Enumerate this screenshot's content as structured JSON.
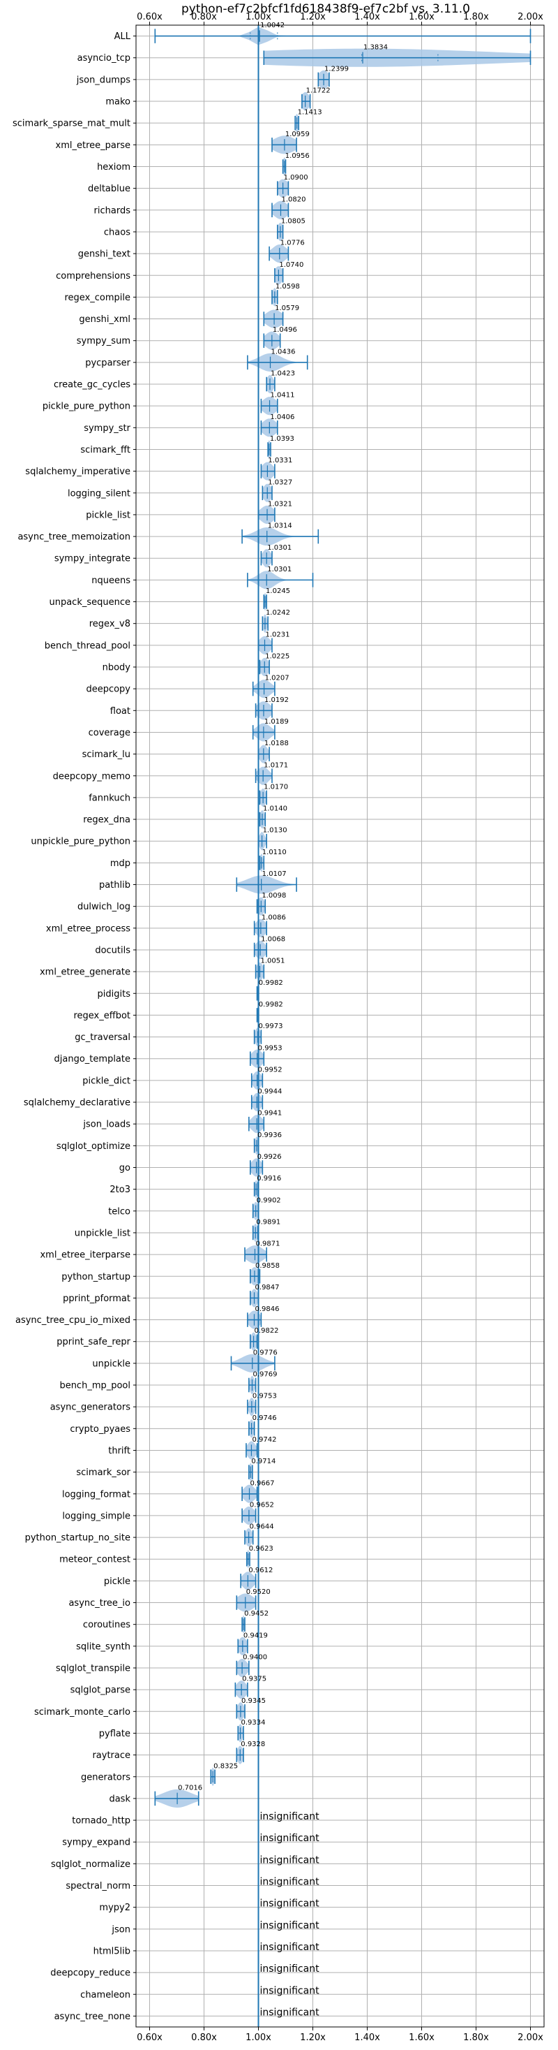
{
  "chart_data": {
    "type": "violin",
    "title": "python-ef7c2bfcf1fd618438f9-ef7c2bf vs. 3.11.0",
    "xlabel": "",
    "ylabel": "",
    "xlim": [
      0.55,
      2.05
    ],
    "x_ticks": [
      0.6,
      0.8,
      1.0,
      1.2,
      1.4,
      1.6,
      1.8,
      2.0
    ],
    "x_tick_labels": [
      "0.60x",
      "0.80x",
      "1.00x",
      "1.20x",
      "1.40x",
      "1.60x",
      "1.80x",
      "2.00x"
    ],
    "x_ticks_top_and_bottom": true,
    "reference_line": 1.0,
    "grid": true,
    "colors": {
      "violin": "#a9c8e6",
      "whisker": "#1f77b4",
      "reference_line": "#1f77b4",
      "grid": "#b0b0b0"
    },
    "insignificant_text": "insignificant",
    "benchmarks": [
      {
        "name": "ALL",
        "label": "1.0042",
        "median": 1.0042,
        "min": 0.62,
        "max": 2.0,
        "spread": 0.03,
        "q1": 0.97,
        "q3": 1.07
      },
      {
        "name": "asyncio_tcp",
        "label": "1.3834",
        "median": 1.3834,
        "min": 1.02,
        "max": 2.0,
        "spread": 0.5,
        "q1": 1.38,
        "q3": 1.66
      },
      {
        "name": "json_dumps",
        "label": "1.2399",
        "median": 1.2399,
        "min": 1.22,
        "max": 1.26,
        "spread": 0.02
      },
      {
        "name": "mako",
        "label": "1.1722",
        "median": 1.1722,
        "min": 1.16,
        "max": 1.19,
        "spread": 0.015
      },
      {
        "name": "scimark_sparse_mat_mult",
        "label": "1.1413",
        "median": 1.1413,
        "min": 1.135,
        "max": 1.148,
        "spread": 0.006
      },
      {
        "name": "xml_etree_parse",
        "label": "1.0959",
        "median": 1.0959,
        "min": 1.05,
        "max": 1.14,
        "spread": 0.04
      },
      {
        "name": "hexiom",
        "label": "1.0956",
        "median": 1.0956,
        "min": 1.09,
        "max": 1.1,
        "spread": 0.006
      },
      {
        "name": "deltablue",
        "label": "1.0900",
        "median": 1.09,
        "min": 1.07,
        "max": 1.11,
        "spread": 0.02
      },
      {
        "name": "richards",
        "label": "1.0820",
        "median": 1.082,
        "min": 1.05,
        "max": 1.11,
        "spread": 0.025
      },
      {
        "name": "chaos",
        "label": "1.0805",
        "median": 1.0805,
        "min": 1.07,
        "max": 1.09,
        "spread": 0.01
      },
      {
        "name": "genshi_text",
        "label": "1.0776",
        "median": 1.0776,
        "min": 1.04,
        "max": 1.11,
        "spread": 0.025
      },
      {
        "name": "comprehensions",
        "label": "1.0740",
        "median": 1.074,
        "min": 1.06,
        "max": 1.09,
        "spread": 0.015
      },
      {
        "name": "regex_compile",
        "label": "1.0598",
        "median": 1.0598,
        "min": 1.05,
        "max": 1.07,
        "spread": 0.008
      },
      {
        "name": "genshi_xml",
        "label": "1.0579",
        "median": 1.0579,
        "min": 1.02,
        "max": 1.09,
        "spread": 0.03
      },
      {
        "name": "sympy_sum",
        "label": "1.0496",
        "median": 1.0496,
        "min": 1.02,
        "max": 1.08,
        "spread": 0.025
      },
      {
        "name": "pycparser",
        "label": "1.0436",
        "median": 1.0436,
        "min": 0.96,
        "max": 1.18,
        "spread": 0.04
      },
      {
        "name": "create_gc_cycles",
        "label": "1.0423",
        "median": 1.0423,
        "min": 1.03,
        "max": 1.06,
        "spread": 0.012
      },
      {
        "name": "pickle_pure_python",
        "label": "1.0411",
        "median": 1.0411,
        "min": 1.01,
        "max": 1.07,
        "spread": 0.025
      },
      {
        "name": "sympy_str",
        "label": "1.0406",
        "median": 1.0406,
        "min": 1.01,
        "max": 1.07,
        "spread": 0.025
      },
      {
        "name": "scimark_fft",
        "label": "1.0393",
        "median": 1.0393,
        "min": 1.035,
        "max": 1.045,
        "spread": 0.005
      },
      {
        "name": "sqlalchemy_imperative",
        "label": "1.0331",
        "median": 1.0331,
        "min": 1.01,
        "max": 1.06,
        "spread": 0.02
      },
      {
        "name": "logging_silent",
        "label": "1.0327",
        "median": 1.0327,
        "min": 1.015,
        "max": 1.05,
        "spread": 0.015
      },
      {
        "name": "pickle_list",
        "label": "1.0321",
        "median": 1.0321,
        "min": 1.0,
        "max": 1.06,
        "spread": 0.025
      },
      {
        "name": "async_tree_memoization",
        "label": "1.0314",
        "median": 1.0314,
        "min": 0.94,
        "max": 1.22,
        "spread": 0.04
      },
      {
        "name": "sympy_integrate",
        "label": "1.0301",
        "median": 1.0301,
        "min": 1.01,
        "max": 1.05,
        "spread": 0.015
      },
      {
        "name": "nqueens",
        "label": "1.0301",
        "median": 1.0301,
        "min": 0.96,
        "max": 1.2,
        "spread": 0.03
      },
      {
        "name": "unpack_sequence",
        "label": "1.0245",
        "median": 1.0245,
        "min": 1.02,
        "max": 1.03,
        "spread": 0.003
      },
      {
        "name": "regex_v8",
        "label": "1.0242",
        "median": 1.0242,
        "min": 1.015,
        "max": 1.035,
        "spread": 0.007
      },
      {
        "name": "bench_thread_pool",
        "label": "1.0231",
        "median": 1.0231,
        "min": 1.0,
        "max": 1.05,
        "spread": 0.02
      },
      {
        "name": "nbody",
        "label": "1.0225",
        "median": 1.0225,
        "min": 1.005,
        "max": 1.04,
        "spread": 0.015
      },
      {
        "name": "deepcopy",
        "label": "1.0207",
        "median": 1.0207,
        "min": 0.98,
        "max": 1.06,
        "spread": 0.025
      },
      {
        "name": "float",
        "label": "1.0192",
        "median": 1.0192,
        "min": 0.99,
        "max": 1.05,
        "spread": 0.025
      },
      {
        "name": "coverage",
        "label": "1.0189",
        "median": 1.0189,
        "min": 0.98,
        "max": 1.06,
        "spread": 0.025
      },
      {
        "name": "scimark_lu",
        "label": "1.0188",
        "median": 1.0188,
        "min": 1.0,
        "max": 1.04,
        "spread": 0.015
      },
      {
        "name": "deepcopy_memo",
        "label": "1.0171",
        "median": 1.0171,
        "min": 0.99,
        "max": 1.05,
        "spread": 0.02
      },
      {
        "name": "fannkuch",
        "label": "1.0170",
        "median": 1.017,
        "min": 1.005,
        "max": 1.03,
        "spread": 0.01
      },
      {
        "name": "regex_dna",
        "label": "1.0140",
        "median": 1.014,
        "min": 1.005,
        "max": 1.025,
        "spread": 0.008
      },
      {
        "name": "unpickle_pure_python",
        "label": "1.0130",
        "median": 1.013,
        "min": 1.0,
        "max": 1.03,
        "spread": 0.01
      },
      {
        "name": "mdp",
        "label": "1.0110",
        "median": 1.011,
        "min": 1.005,
        "max": 1.02,
        "spread": 0.005
      },
      {
        "name": "pathlib",
        "label": "1.0107",
        "median": 1.0107,
        "min": 0.92,
        "max": 1.14,
        "spread": 0.05
      },
      {
        "name": "dulwich_log",
        "label": "1.0098",
        "median": 1.0098,
        "min": 0.995,
        "max": 1.025,
        "spread": 0.012
      },
      {
        "name": "xml_etree_process",
        "label": "1.0086",
        "median": 1.0086,
        "min": 0.985,
        "max": 1.03,
        "spread": 0.018
      },
      {
        "name": "docutils",
        "label": "1.0068",
        "median": 1.0068,
        "min": 0.985,
        "max": 1.03,
        "spread": 0.018
      },
      {
        "name": "xml_etree_generate",
        "label": "1.0051",
        "median": 1.0051,
        "min": 0.99,
        "max": 1.02,
        "spread": 0.012
      },
      {
        "name": "pidigits",
        "label": "0.9982",
        "median": 0.9982,
        "min": 0.995,
        "max": 1.001,
        "spread": 0.003
      },
      {
        "name": "regex_effbot",
        "label": "0.9982",
        "median": 0.9982,
        "min": 0.995,
        "max": 1.001,
        "spread": 0.003
      },
      {
        "name": "gc_traversal",
        "label": "0.9973",
        "median": 0.9973,
        "min": 0.985,
        "max": 1.01,
        "spread": 0.01
      },
      {
        "name": "django_template",
        "label": "0.9953",
        "median": 0.9953,
        "min": 0.97,
        "max": 1.02,
        "spread": 0.02
      },
      {
        "name": "pickle_dict",
        "label": "0.9952",
        "median": 0.9952,
        "min": 0.975,
        "max": 1.015,
        "spread": 0.015
      },
      {
        "name": "sqlalchemy_declarative",
        "label": "0.9944",
        "median": 0.9944,
        "min": 0.975,
        "max": 1.015,
        "spread": 0.015
      },
      {
        "name": "json_loads",
        "label": "0.9941",
        "median": 0.9941,
        "min": 0.965,
        "max": 1.02,
        "spread": 0.02
      },
      {
        "name": "sqlglot_optimize",
        "label": "0.9936",
        "median": 0.9936,
        "min": 0.985,
        "max": 1.0,
        "spread": 0.006
      },
      {
        "name": "go",
        "label": "0.9926",
        "median": 0.9926,
        "min": 0.97,
        "max": 1.015,
        "spread": 0.018
      },
      {
        "name": "2to3",
        "label": "0.9916",
        "median": 0.9916,
        "min": 0.985,
        "max": 0.998,
        "spread": 0.005
      },
      {
        "name": "telco",
        "label": "0.9902",
        "median": 0.9902,
        "min": 0.98,
        "max": 1.0,
        "spread": 0.008
      },
      {
        "name": "unpickle_list",
        "label": "0.9891",
        "median": 0.9891,
        "min": 0.98,
        "max": 0.998,
        "spread": 0.007
      },
      {
        "name": "xml_etree_iterparse",
        "label": "0.9871",
        "median": 0.9871,
        "min": 0.95,
        "max": 1.03,
        "spread": 0.03
      },
      {
        "name": "python_startup",
        "label": "0.9858",
        "median": 0.9858,
        "min": 0.97,
        "max": 1.005,
        "spread": 0.015
      },
      {
        "name": "pprint_pformat",
        "label": "0.9847",
        "median": 0.9847,
        "min": 0.97,
        "max": 1.0,
        "spread": 0.012
      },
      {
        "name": "async_tree_cpu_io_mixed",
        "label": "0.9846",
        "median": 0.9846,
        "min": 0.96,
        "max": 1.01,
        "spread": 0.02
      },
      {
        "name": "pprint_safe_repr",
        "label": "0.9822",
        "median": 0.9822,
        "min": 0.97,
        "max": 0.995,
        "spread": 0.01
      },
      {
        "name": "unpickle",
        "label": "0.9776",
        "median": 0.9776,
        "min": 0.9,
        "max": 1.06,
        "spread": 0.04
      },
      {
        "name": "bench_mp_pool",
        "label": "0.9769",
        "median": 0.9769,
        "min": 0.965,
        "max": 0.99,
        "spread": 0.008
      },
      {
        "name": "async_generators",
        "label": "0.9753",
        "median": 0.9753,
        "min": 0.96,
        "max": 0.99,
        "spread": 0.01
      },
      {
        "name": "crypto_pyaes",
        "label": "0.9746",
        "median": 0.9746,
        "min": 0.965,
        "max": 0.985,
        "spread": 0.008
      },
      {
        "name": "thrift",
        "label": "0.9742",
        "median": 0.9742,
        "min": 0.955,
        "max": 0.995,
        "spread": 0.015
      },
      {
        "name": "scimark_sor",
        "label": "0.9714",
        "median": 0.9714,
        "min": 0.965,
        "max": 0.978,
        "spread": 0.005
      },
      {
        "name": "logging_format",
        "label": "0.9667",
        "median": 0.9667,
        "min": 0.94,
        "max": 0.995,
        "spread": 0.02
      },
      {
        "name": "logging_simple",
        "label": "0.9652",
        "median": 0.9652,
        "min": 0.94,
        "max": 0.99,
        "spread": 0.02
      },
      {
        "name": "python_startup_no_site",
        "label": "0.9644",
        "median": 0.9644,
        "min": 0.95,
        "max": 0.98,
        "spread": 0.012
      },
      {
        "name": "meteor_contest",
        "label": "0.9623",
        "median": 0.9623,
        "min": 0.957,
        "max": 0.968,
        "spread": 0.004
      },
      {
        "name": "pickle",
        "label": "0.9612",
        "median": 0.9612,
        "min": 0.935,
        "max": 0.99,
        "spread": 0.02
      },
      {
        "name": "async_tree_io",
        "label": "0.9520",
        "median": 0.952,
        "min": 0.92,
        "max": 0.99,
        "spread": 0.03
      },
      {
        "name": "coroutines",
        "label": "0.9452",
        "median": 0.9452,
        "min": 0.94,
        "max": 0.95,
        "spread": 0.004
      },
      {
        "name": "sqlite_synth",
        "label": "0.9419",
        "median": 0.9419,
        "min": 0.925,
        "max": 0.96,
        "spread": 0.015
      },
      {
        "name": "sqlglot_transpile",
        "label": "0.9400",
        "median": 0.94,
        "min": 0.92,
        "max": 0.965,
        "spread": 0.018
      },
      {
        "name": "sqlglot_parse",
        "label": "0.9375",
        "median": 0.9375,
        "min": 0.915,
        "max": 0.96,
        "spread": 0.018
      },
      {
        "name": "scimark_monte_carlo",
        "label": "0.9345",
        "median": 0.9345,
        "min": 0.92,
        "max": 0.95,
        "spread": 0.012
      },
      {
        "name": "pyflate",
        "label": "0.9334",
        "median": 0.9334,
        "min": 0.925,
        "max": 0.945,
        "spread": 0.008
      },
      {
        "name": "raytrace",
        "label": "0.9328",
        "median": 0.9328,
        "min": 0.92,
        "max": 0.945,
        "spread": 0.01
      },
      {
        "name": "generators",
        "label": "0.8325",
        "median": 0.8325,
        "min": 0.825,
        "max": 0.84,
        "spread": 0.006
      },
      {
        "name": "dask",
        "label": "0.7016",
        "median": 0.7016,
        "min": 0.62,
        "max": 0.78,
        "spread": 0.05
      },
      {
        "name": "tornado_http",
        "insignificant": true
      },
      {
        "name": "sympy_expand",
        "insignificant": true
      },
      {
        "name": "sqlglot_normalize",
        "insignificant": true
      },
      {
        "name": "spectral_norm",
        "insignificant": true
      },
      {
        "name": "mypy2",
        "insignificant": true
      },
      {
        "name": "json",
        "insignificant": true
      },
      {
        "name": "html5lib",
        "insignificant": true
      },
      {
        "name": "deepcopy_reduce",
        "insignificant": true
      },
      {
        "name": "chameleon",
        "insignificant": true
      },
      {
        "name": "async_tree_none",
        "insignificant": true
      }
    ]
  }
}
